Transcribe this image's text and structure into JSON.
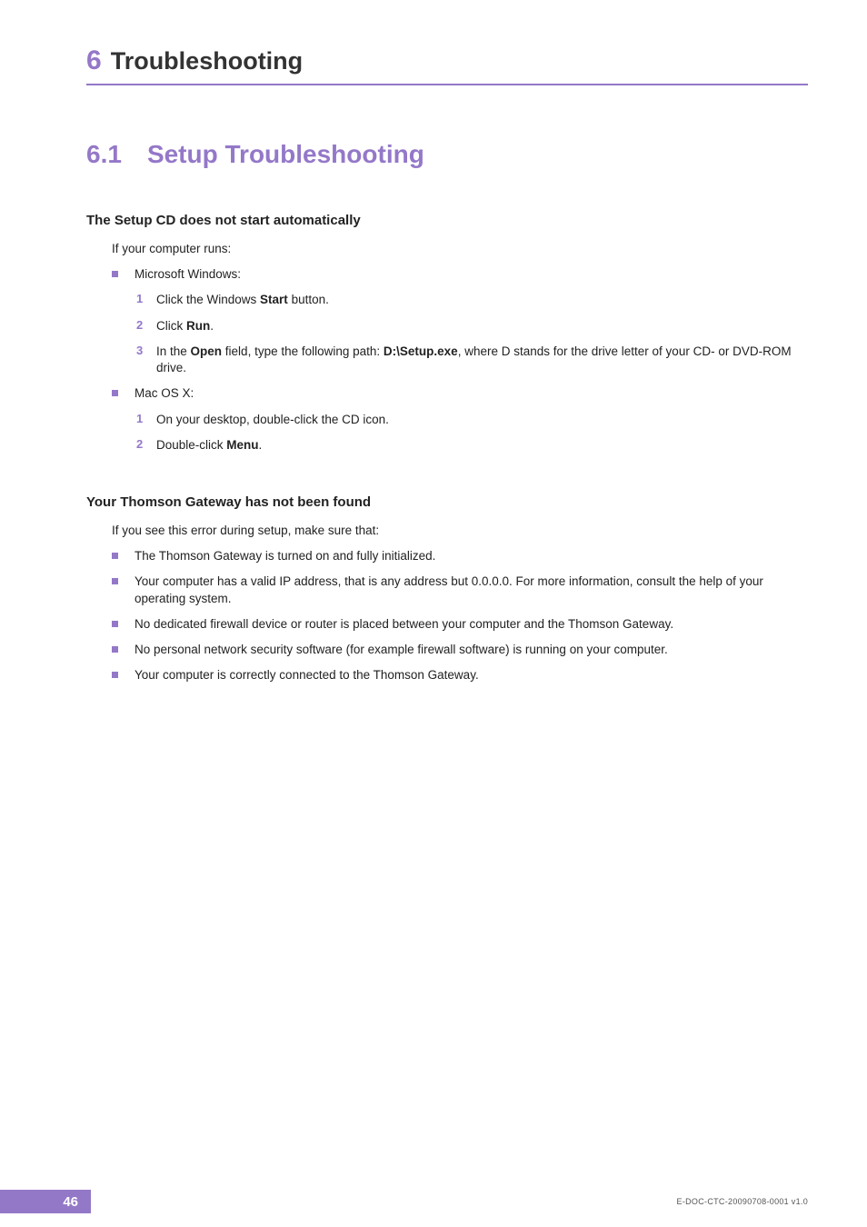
{
  "colors": {
    "accent": "#9478c8",
    "text": "#222222",
    "background": "#ffffff",
    "page_num_bg": "#9478c8",
    "page_num_text": "#ffffff"
  },
  "typography": {
    "chapter_num_size": 30,
    "chapter_title_size": 27,
    "section_size": 28,
    "subhead_size": 15,
    "body_size": 13.5
  },
  "chapter": {
    "number": "6",
    "title": "Troubleshooting"
  },
  "section": {
    "number": "6.1",
    "title": "Setup Troubleshooting"
  },
  "block1": {
    "heading": "The Setup CD does not start automatically",
    "intro": "If your computer runs:",
    "os1": "Microsoft Windows:",
    "os1_steps": {
      "s1_a": "Click the Windows ",
      "s1_b": "Start",
      "s1_c": " button.",
      "s2_a": "Click ",
      "s2_b": "Run",
      "s2_c": ".",
      "s3_a": "In the ",
      "s3_b": "Open",
      "s3_c": " field, type the following path: ",
      "s3_d": "D:\\Setup.exe",
      "s3_e": ", where D stands for the drive letter of your CD- or DVD-ROM drive."
    },
    "os2": "Mac OS X:",
    "os2_steps": {
      "s1": "On your desktop, double-click the CD icon.",
      "s2_a": "Double-click ",
      "s2_b": "Menu",
      "s2_c": "."
    }
  },
  "block2": {
    "heading": "Your Thomson Gateway has not been found",
    "intro": "If you see this error during setup, make sure that:",
    "items": {
      "i1": "The Thomson Gateway is turned on and fully initialized.",
      "i2": "Your computer has a valid IP address, that is any address but 0.0.0.0. For more information, consult the help of your operating system.",
      "i3": "No dedicated firewall device or router is placed between your computer and the Thomson Gateway.",
      "i4": "No personal network security software (for example firewall software) is running on your computer.",
      "i5": "Your computer is correctly connected to the Thomson Gateway."
    }
  },
  "footer": {
    "page_number": "46",
    "doc_id": "E-DOC-CTC-20090708-0001 v1.0"
  }
}
